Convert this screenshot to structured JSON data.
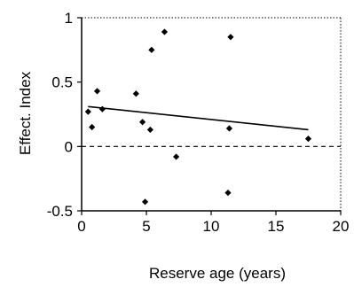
{
  "chart_data": {
    "type": "scatter",
    "title": "",
    "xlabel": "Reserve age (years)",
    "ylabel": "Effect. Index",
    "xlim": [
      0,
      20
    ],
    "ylim": [
      -0.5,
      1
    ],
    "x_ticks": [
      "0",
      "5",
      "10",
      "15",
      "20"
    ],
    "y_ticks": [
      "1",
      "0.5",
      "0",
      "-0.5"
    ],
    "grid": false,
    "points": [
      {
        "x": 0.5,
        "y": 0.27
      },
      {
        "x": 0.8,
        "y": 0.15
      },
      {
        "x": 1.2,
        "y": 0.43
      },
      {
        "x": 1.6,
        "y": 0.29
      },
      {
        "x": 4.2,
        "y": 0.41
      },
      {
        "x": 4.7,
        "y": 0.19
      },
      {
        "x": 5.3,
        "y": 0.13
      },
      {
        "x": 5.4,
        "y": 0.75
      },
      {
        "x": 6.4,
        "y": 0.89
      },
      {
        "x": 7.3,
        "y": -0.08
      },
      {
        "x": 4.9,
        "y": -0.43
      },
      {
        "x": 11.3,
        "y": -0.36
      },
      {
        "x": 11.4,
        "y": 0.14
      },
      {
        "x": 11.5,
        "y": 0.85
      },
      {
        "x": 17.5,
        "y": 0.06
      }
    ],
    "trendline": {
      "x": [
        0.5,
        17.5
      ],
      "y": [
        0.31,
        0.13
      ]
    },
    "reference_line": {
      "y": 0,
      "style": "dashed"
    }
  }
}
